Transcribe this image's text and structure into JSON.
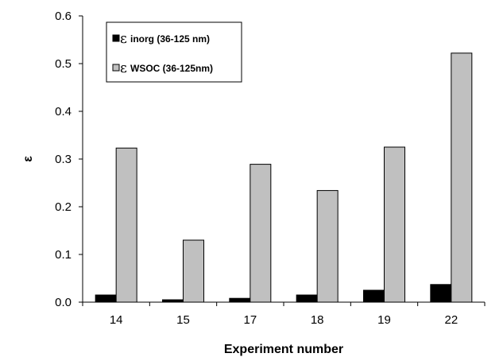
{
  "chart_data": {
    "type": "bar",
    "categories": [
      "14",
      "15",
      "17",
      "18",
      "19",
      "22"
    ],
    "series": [
      {
        "name": "inorg (36-125 nm)",
        "symbol": "ε",
        "color": "#000000",
        "values": [
          0.015,
          0.005,
          0.008,
          0.015,
          0.025,
          0.037
        ]
      },
      {
        "name": "WSOC (36-125nm)",
        "symbol": "ε",
        "color": "#c0c0c0",
        "values": [
          0.323,
          0.13,
          0.289,
          0.234,
          0.325,
          0.522
        ]
      }
    ],
    "xlabel": "Experiment number",
    "ylabel": "ε",
    "ylim": [
      0,
      0.6
    ],
    "yticks": [
      "0.0",
      "0.1",
      "0.2",
      "0.3",
      "0.4",
      "0.5",
      "0.6"
    ],
    "grid": false,
    "legend_position": "top-left"
  }
}
